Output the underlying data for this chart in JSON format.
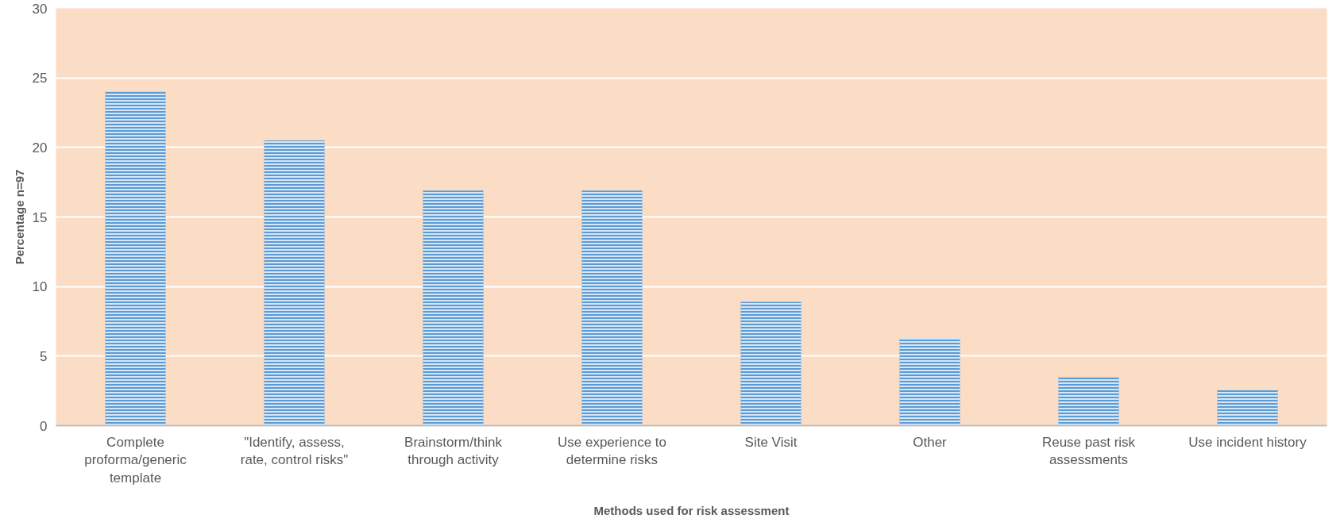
{
  "chart_data": {
    "type": "bar",
    "xlabel": "Methods used for risk assessment",
    "ylabel": "Percentage n=97",
    "categories": [
      "Complete proforma/generic template",
      "\"Identify, assess, rate, control risks\"",
      "Brainstorm/think through activity",
      "Use experience to determine risks",
      "Site Visit",
      "Other",
      "Reuse past risk assessments",
      "Use incident history"
    ],
    "values": [
      24.0,
      20.5,
      16.9,
      16.9,
      8.9,
      6.3,
      3.5,
      2.6
    ],
    "color": "#5b9bd5",
    "ylim": [
      0,
      30
    ],
    "yticks": [
      0,
      5,
      10,
      15,
      20,
      25,
      30
    ],
    "grid": "y"
  }
}
